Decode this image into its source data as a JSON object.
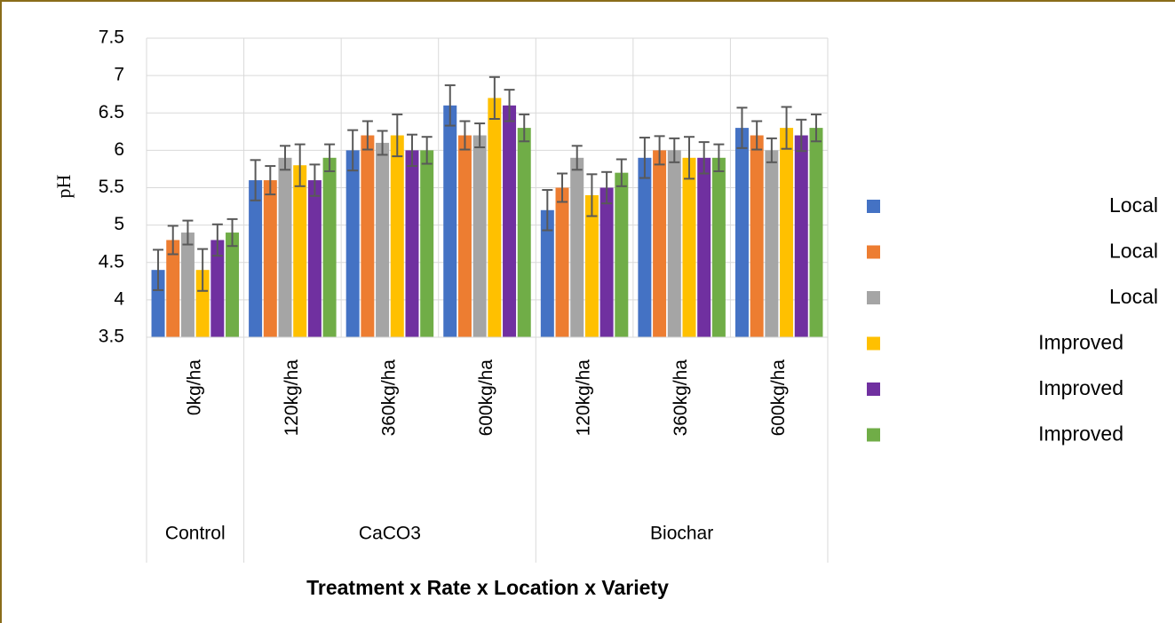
{
  "chart_data": {
    "type": "bar",
    "title": "",
    "ylabel": "pH",
    "xlabel": "Treatment x Rate x Location x Variety",
    "ylim": [
      3.5,
      7.5
    ],
    "yticks": [
      "3.5",
      "4",
      "4.5",
      "5",
      "5.5",
      "6",
      "6.5",
      "7",
      "7.5"
    ],
    "categories": [
      "0kg/ha",
      "120kg/ha",
      "360kg/ha",
      "600kg/ha",
      "120kg/ha",
      "360kg/ha",
      "600kg/ha"
    ],
    "groups": [
      {
        "label": "Control",
        "span": 1
      },
      {
        "label": "CaCO3",
        "span": 3
      },
      {
        "label": "Biochar",
        "span": 3
      }
    ],
    "grid": true,
    "legend_position": "right",
    "series": [
      {
        "name": "Local",
        "color": "#4472c4",
        "values": [
          4.4,
          5.6,
          6.0,
          6.6,
          5.2,
          5.9,
          6.3
        ],
        "errors": [
          0.27,
          0.27,
          0.27,
          0.27,
          0.27,
          0.27,
          0.27
        ]
      },
      {
        "name": "Local",
        "color": "#ed7d31",
        "values": [
          4.8,
          5.6,
          6.2,
          6.2,
          5.5,
          6.0,
          6.2
        ],
        "errors": [
          0.19,
          0.19,
          0.19,
          0.19,
          0.19,
          0.19,
          0.19
        ]
      },
      {
        "name": "Local",
        "color": "#a5a5a5",
        "values": [
          4.9,
          5.9,
          6.1,
          6.2,
          5.9,
          6.0,
          6.0
        ],
        "errors": [
          0.16,
          0.16,
          0.16,
          0.16,
          0.16,
          0.16,
          0.16
        ]
      },
      {
        "name": "Improved",
        "color": "#ffc000",
        "values": [
          4.4,
          5.8,
          6.2,
          6.7,
          5.4,
          5.9,
          6.3
        ],
        "errors": [
          0.28,
          0.28,
          0.28,
          0.28,
          0.28,
          0.28,
          0.28
        ]
      },
      {
        "name": "Improved",
        "color": "#7030a0",
        "values": [
          4.8,
          5.6,
          6.0,
          6.6,
          5.5,
          5.9,
          6.2
        ],
        "errors": [
          0.21,
          0.21,
          0.21,
          0.21,
          0.21,
          0.21,
          0.21
        ]
      },
      {
        "name": "Improved",
        "color": "#70ad47",
        "values": [
          4.9,
          5.9,
          6.0,
          6.3,
          5.7,
          5.9,
          6.3
        ],
        "errors": [
          0.18,
          0.18,
          0.18,
          0.18,
          0.18,
          0.18,
          0.18
        ]
      }
    ]
  }
}
